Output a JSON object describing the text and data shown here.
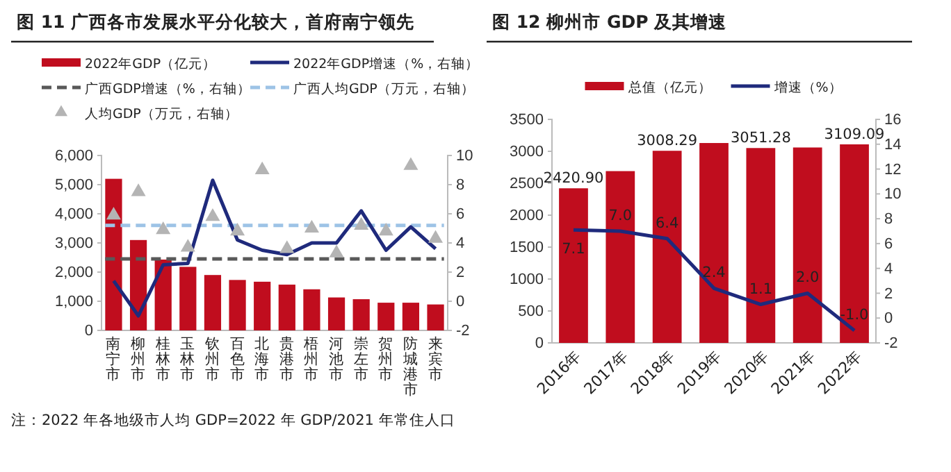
{
  "chart_data": [
    {
      "type": "bar",
      "title": "图 11 广西各市发展水平分化较大，首府南宁领先",
      "categories": [
        "南宁市",
        "柳州市",
        "桂林市",
        "玉林市",
        "钦州市",
        "百色市",
        "北海市",
        "贵港市",
        "梧州市",
        "河池市",
        "崇左市",
        "贺州市",
        "防城港市",
        "来宾市"
      ],
      "series": [
        {
          "name": "2022年GDP（亿元）",
          "color": "#c00d1e",
          "values": [
            5200,
            3100,
            2430,
            2180,
            1900,
            1730,
            1670,
            1570,
            1410,
            1130,
            1070,
            950,
            950,
            890
          ]
        },
        {
          "name": "2022年GDP增速（%，右轴）",
          "type": "line",
          "axis": "y2",
          "color": "#1f2a7c",
          "values": [
            1.4,
            -1.0,
            2.5,
            2.6,
            8.3,
            4.2,
            3.5,
            3.2,
            4.0,
            4.0,
            6.2,
            3.5,
            5.1,
            3.6
          ]
        },
        {
          "name": "人均GDP（万元，右轴）",
          "type": "scatter",
          "axis": "y2",
          "marker": "triangle",
          "color": "#b4b4b4",
          "values": [
            5.9,
            7.5,
            4.9,
            3.7,
            5.8,
            4.8,
            9.0,
            3.6,
            5.0,
            3.3,
            5.2,
            4.8,
            9.3,
            4.3
          ]
        }
      ],
      "ref_lines": [
        {
          "axis": "y2",
          "value": 2.9,
          "label": "广西GDP增速（%，右轴）",
          "color": "#595959",
          "line_style": "dashed"
        },
        {
          "axis": "y2",
          "value": 5.2,
          "label": "广西人均GDP（万元，右轴）",
          "color": "#9dc3e6",
          "line_style": "dashed"
        }
      ],
      "ylim": [
        0,
        6000
      ],
      "yticks": [
        0,
        {
          "value": 1000,
          "label": "1,000"
        },
        {
          "value": 2000,
          "label": "2,000"
        },
        {
          "value": 3000,
          "label": "3,000"
        },
        {
          "value": 4000,
          "label": "4,000"
        },
        {
          "value": 5000,
          "label": "5,000"
        },
        {
          "value": 6000,
          "label": "6,000"
        }
      ],
      "y2lim": [
        -2,
        10
      ],
      "y2ticks": [
        -2,
        0,
        2,
        4,
        6,
        8,
        10
      ],
      "grid": false,
      "legend": "top",
      "annotations": [
        "注：2022 年各地级市人均 GDP=2022 年 GDP/2021 年常住人口"
      ]
    },
    {
      "type": "bar",
      "title": "图 12 柳州市 GDP 及其增速",
      "categories": [
        "2016年",
        "2017年",
        "2018年",
        "2019年",
        "2020年",
        "2021年",
        "2022年"
      ],
      "series": [
        {
          "name": "总值（亿元）",
          "color": "#c00d1e",
          "values": [
            2420.9,
            2690,
            3008.29,
            3130,
            3051.28,
            3060,
            3109.09
          ],
          "value_labels": [
            "2420.90",
            null,
            "3008.29",
            null,
            "3051.28",
            null,
            "3109.09"
          ]
        },
        {
          "name": "增速（%）",
          "type": "line",
          "axis": "y2",
          "color": "#1f2a7c",
          "values": [
            7.1,
            7.0,
            6.4,
            2.4,
            1.1,
            2.0,
            -1.0
          ],
          "value_labels": [
            "7.1",
            "7.0",
            "6.4",
            "2.4",
            "1.1",
            "2.0",
            "-1.0"
          ]
        }
      ],
      "ylim": [
        0,
        3500
      ],
      "yticks": [
        0,
        500,
        1000,
        1500,
        2000,
        2500,
        3000,
        3500
      ],
      "y2lim": [
        -2,
        16
      ],
      "y2ticks": [
        -2,
        0,
        2,
        4,
        6,
        8,
        10,
        12,
        14,
        16
      ],
      "grid": false,
      "legend": "top"
    }
  ]
}
